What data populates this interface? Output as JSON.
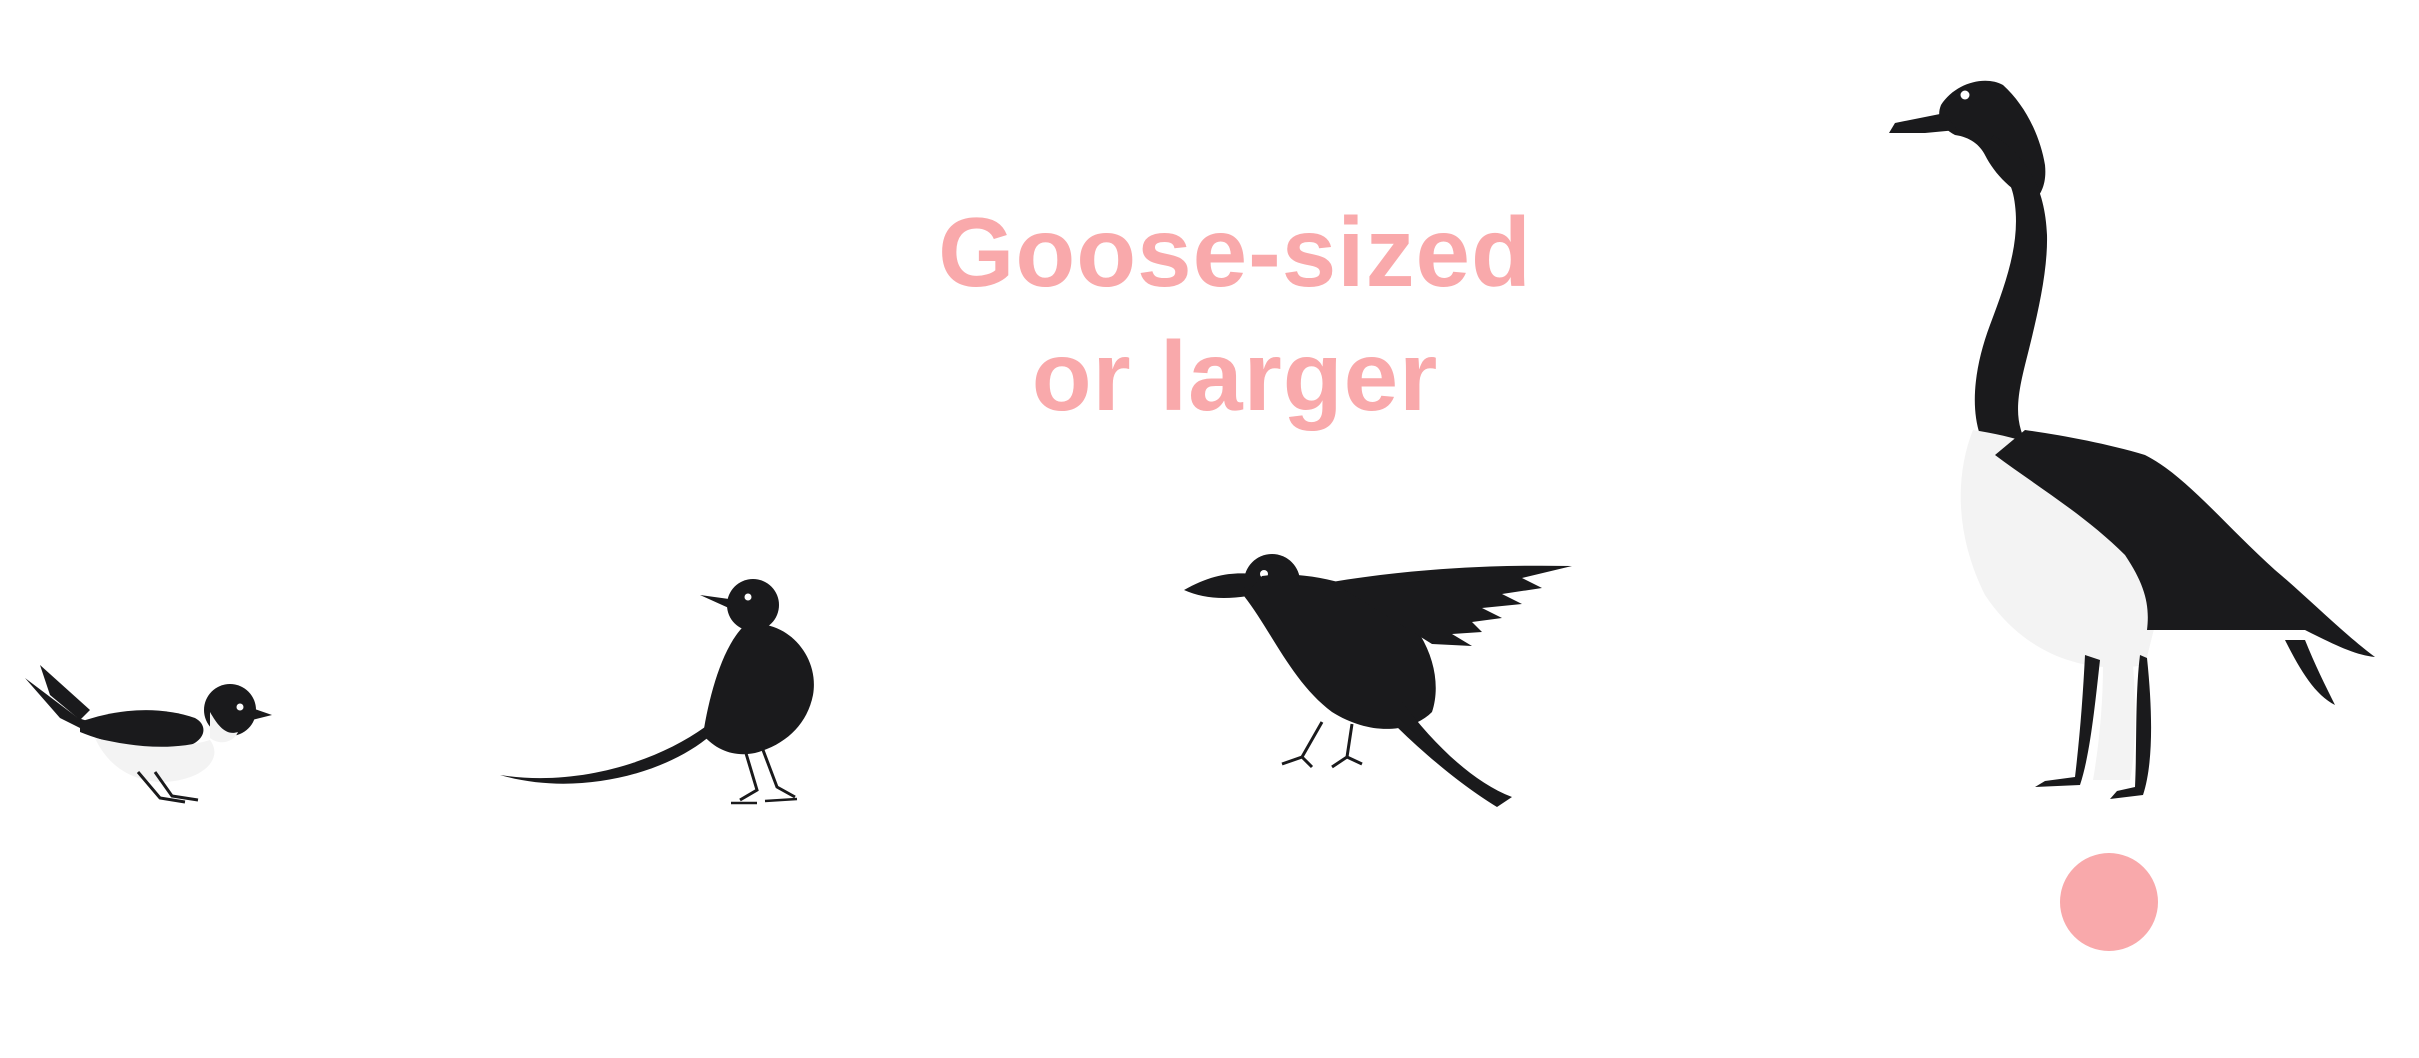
{
  "title": {
    "line1": "Goose-sized",
    "line2": "or larger"
  },
  "colors": {
    "title": "#f9a9ab",
    "marker": "#f9a9ab",
    "bird_dark": "#1a1a1c",
    "bird_light": "#f3f3f3",
    "background": "#ffffff"
  },
  "birds": [
    {
      "icon": "sparrow-icon"
    },
    {
      "icon": "wagtail-icon"
    },
    {
      "icon": "crow-icon"
    },
    {
      "icon": "goose-icon"
    }
  ],
  "selected_bird": "goose-icon"
}
